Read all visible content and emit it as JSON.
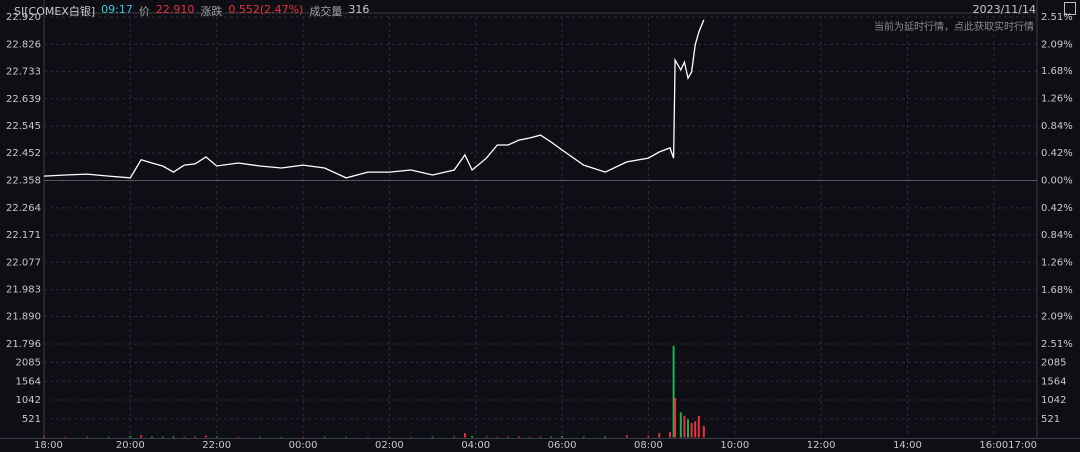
{
  "header": {
    "symbol": "SI[COMEX白银]",
    "time": "09:17",
    "price_label": "价",
    "price": "22.910",
    "change_label": "涨跌",
    "change": "0.552(2.47%)",
    "volume_label": "成交量",
    "volume": "316",
    "date": "2023/11/14",
    "notice": "当前为延时行情，点此获取实时行情"
  },
  "chart_data": {
    "type": "line",
    "color": "#ffffff",
    "grid": true,
    "x": [
      "18:00",
      "18:30",
      "19:00",
      "19:30",
      "20:00",
      "20:15",
      "20:30",
      "20:45",
      "21:00",
      "21:15",
      "21:30",
      "21:45",
      "22:00",
      "22:30",
      "23:00",
      "23:30",
      "00:00",
      "00:30",
      "01:00",
      "01:30",
      "02:00",
      "02:30",
      "03:00",
      "03:30",
      "03:45",
      "03:55",
      "04:15",
      "04:30",
      "04:45",
      "05:00",
      "05:15",
      "05:30",
      "05:45",
      "06:00",
      "06:30",
      "07:00",
      "07:30",
      "08:00",
      "08:15",
      "08:30",
      "08:35",
      "08:37",
      "08:45",
      "08:50",
      "08:55",
      "09:00",
      "09:05",
      "09:10",
      "09:17"
    ],
    "values": [
      22.373,
      22.377,
      22.38,
      22.373,
      22.367,
      22.429,
      22.418,
      22.408,
      22.387,
      22.411,
      22.415,
      22.439,
      22.408,
      22.418,
      22.408,
      22.401,
      22.411,
      22.401,
      22.367,
      22.387,
      22.387,
      22.394,
      22.377,
      22.394,
      22.446,
      22.394,
      22.435,
      22.48,
      22.48,
      22.497,
      22.504,
      22.514,
      22.49,
      22.463,
      22.411,
      22.387,
      22.422,
      22.435,
      22.456,
      22.47,
      22.435,
      22.772,
      22.738,
      22.765,
      22.71,
      22.731,
      22.824,
      22.868,
      22.91
    ],
    "volume_values": [
      30,
      20,
      25,
      20,
      40,
      60,
      30,
      25,
      30,
      20,
      25,
      50,
      30,
      20,
      20,
      15,
      20,
      25,
      20,
      15,
      20,
      15,
      25,
      30,
      120,
      40,
      30,
      20,
      25,
      30,
      20,
      25,
      30,
      40,
      25,
      30,
      60,
      50,
      120,
      150,
      2550,
      1100,
      700,
      600,
      500,
      400,
      450,
      600,
      316
    ],
    "xlim": [
      "18:00",
      "17:00"
    ],
    "xticks": [
      "18:00",
      "20:00",
      "22:00",
      "00:00",
      "02:00",
      "04:00",
      "06:00",
      "08:00",
      "10:00",
      "12:00",
      "14:00",
      "16:00",
      "17:00"
    ],
    "ylim": [
      21.796,
      22.92
    ],
    "yticks": [
      {
        "value": 22.92,
        "label": "22.920"
      },
      22.826,
      22.733,
      22.639,
      22.545,
      22.452,
      22.358,
      22.264,
      22.171,
      22.077,
      21.983,
      {
        "value": 21.89,
        "label": "21.890"
      },
      21.796
    ],
    "y2lim": [
      -2.51,
      2.51
    ],
    "y2ticks": [
      {
        "value": 2.51,
        "label": "2.51%"
      },
      {
        "value": 2.09,
        "label": "2.09%"
      },
      {
        "value": 1.68,
        "label": "1.68%"
      },
      {
        "value": 1.26,
        "label": "1.26%"
      },
      {
        "value": 0.84,
        "label": "0.84%"
      },
      {
        "value": 0.42,
        "label": "0.42%"
      },
      {
        "value": 0,
        "label": "0.00%"
      },
      {
        "value": -0.42,
        "label": "0.42%"
      },
      {
        "value": -0.84,
        "label": "0.84%"
      },
      {
        "value": -1.26,
        "label": "1.26%"
      },
      {
        "value": -1.68,
        "label": "1.68%"
      },
      {
        "value": -2.09,
        "label": "2.09%"
      },
      {
        "value": -2.51,
        "label": "2.51%"
      }
    ],
    "volume_ylim": [
      0,
      2600
    ],
    "volume_yticks": [
      2085,
      1564,
      1042,
      521
    ],
    "up_color": "#e8323c",
    "down_color": "#22b14c"
  }
}
